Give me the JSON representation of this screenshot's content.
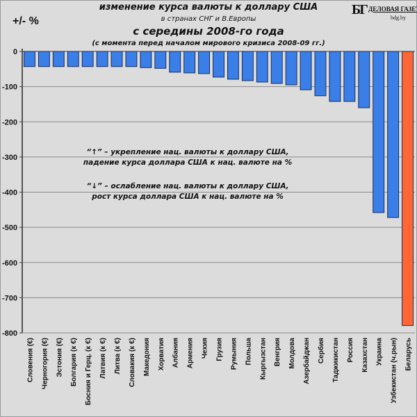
{
  "header": {
    "title_line1": "изменение  курса валюты к доллару США",
    "title_line2": "в странах СНГ и В.Европы",
    "title_line3": "с середины 2008-го года",
    "title_line4": "(с момента перед началом мирового кризиса 2008-09  гг.)",
    "y_unit": "+/- %",
    "logo": {
      "mark": "БГ",
      "name": "ДЕЛОВАЯ ГАЗЕТА",
      "site": "bdg.by"
    }
  },
  "notes": {
    "up_line1": "“↑” – укрепление нац. валюты к доллару США,",
    "up_line2": "падение курса доллара США к нац. валюте на %",
    "down_line1": "“↓” – ослабление нац. валюты к доллару США,",
    "down_line2": "рост курса доллара США к нац. валюте на %"
  },
  "colors": {
    "bar": "#3a7fe8",
    "highlight": "#ff6633",
    "background": "#dcdcdc"
  },
  "chart_data": {
    "type": "bar",
    "title": "изменение курса валюты к доллару США в странах СНГ и В.Европы с середины 2008-го года",
    "subtitle": "(с момента перед началом мирового кризиса 2008-09 гг.)",
    "xlabel": "",
    "ylabel": "+/- %",
    "ylim": [
      -800,
      0
    ],
    "yticks": [
      0,
      -100,
      -200,
      -300,
      -400,
      -500,
      -600,
      -700,
      -800
    ],
    "grid": true,
    "categories": [
      "Словения (€)",
      "Черногория (€)",
      "Эстония (€)",
      "Болгария (к €)",
      "Босния и Герц. (к €)",
      "Латвия (к €)",
      "Литва (к €)",
      "Словакия (к €)",
      "Македония",
      "Хорватия",
      "Албания",
      "Армения",
      "Чехия",
      "Грузия",
      "Румыния",
      "Польша",
      "Кыргызстан",
      "Венгрия",
      "Молдова",
      "Азербайджан",
      "Сербия",
      "Таджикистан",
      "Россия",
      "Казахстан",
      "Украина",
      "Узбекистан (ч.рын)",
      "Беларусь"
    ],
    "values": [
      -43,
      -43,
      -43,
      -43,
      -43,
      -43,
      -43,
      -43,
      -46,
      -48,
      -59,
      -61,
      -63,
      -73,
      -79,
      -83,
      -87,
      -91,
      -95,
      -109,
      -126,
      -142,
      -142,
      -160,
      -458,
      -472,
      -779
    ],
    "highlight": [
      "Беларусь"
    ]
  }
}
